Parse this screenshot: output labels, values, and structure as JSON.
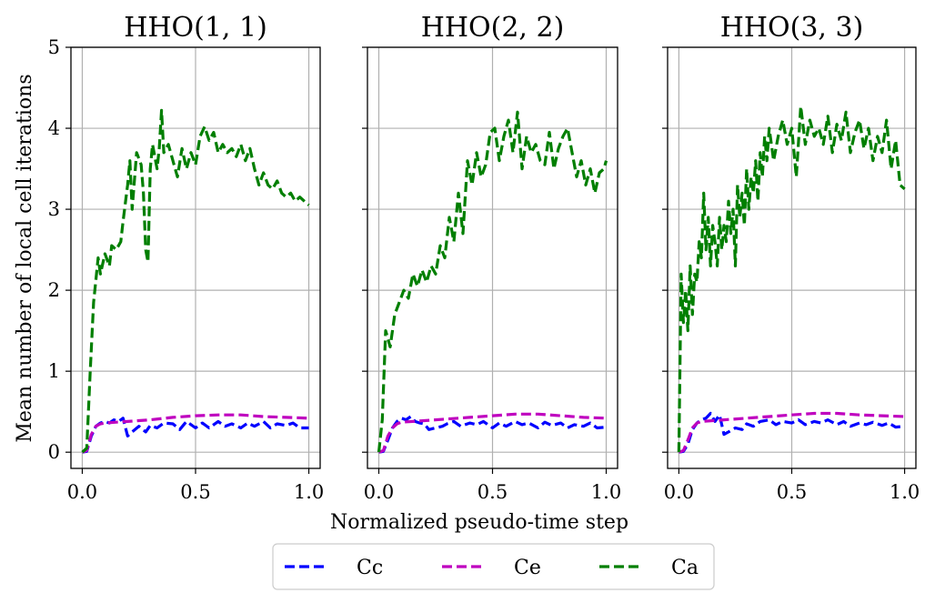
{
  "figure": {
    "xlabel": "Normalized pseudo-time step",
    "ylabel": "Mean number of local cell iterations"
  },
  "legend": {
    "placement": "bottom-center",
    "entries": [
      {
        "name": "Cc",
        "color": "#0000ff"
      },
      {
        "name": "Ce",
        "color": "#bf00bf"
      },
      {
        "name": "Ca",
        "color": "#007f00"
      }
    ]
  },
  "chart_data": [
    {
      "type": "line",
      "title": "HHO(1, 1)",
      "xlim": [
        -0.05,
        1.05
      ],
      "ylim": [
        -0.2,
        5
      ],
      "xticks": [
        "0.0",
        "0.5",
        "1.0"
      ],
      "yticks": [
        "0",
        "1",
        "2",
        "3",
        "4",
        "5"
      ],
      "grid": true,
      "series": [
        {
          "name": "Cc",
          "color": "#0000ff",
          "x": [
            0,
            0.02,
            0.04,
            0.06,
            0.08,
            0.1,
            0.12,
            0.14,
            0.16,
            0.18,
            0.2,
            0.22,
            0.25,
            0.28,
            0.3,
            0.33,
            0.36,
            0.4,
            0.43,
            0.46,
            0.5,
            0.53,
            0.56,
            0.6,
            0.63,
            0.66,
            0.7,
            0.73,
            0.76,
            0.8,
            0.83,
            0.86,
            0.9,
            0.93,
            0.96,
            1.0
          ],
          "y": [
            0,
            0.01,
            0.2,
            0.32,
            0.36,
            0.38,
            0.36,
            0.4,
            0.38,
            0.42,
            0.2,
            0.25,
            0.32,
            0.25,
            0.33,
            0.3,
            0.36,
            0.35,
            0.28,
            0.38,
            0.3,
            0.36,
            0.3,
            0.38,
            0.32,
            0.35,
            0.3,
            0.36,
            0.32,
            0.38,
            0.3,
            0.35,
            0.33,
            0.36,
            0.3,
            0.3
          ]
        },
        {
          "name": "Ce",
          "color": "#bf00bf",
          "x": [
            0,
            0.02,
            0.04,
            0.06,
            0.08,
            0.1,
            0.15,
            0.2,
            0.3,
            0.4,
            0.5,
            0.6,
            0.7,
            0.8,
            0.9,
            1.0
          ],
          "y": [
            0,
            0.02,
            0.22,
            0.32,
            0.35,
            0.36,
            0.37,
            0.38,
            0.4,
            0.43,
            0.45,
            0.46,
            0.46,
            0.44,
            0.43,
            0.42
          ]
        },
        {
          "name": "Ca",
          "color": "#007f00",
          "x": [
            0,
            0.02,
            0.035,
            0.05,
            0.07,
            0.08,
            0.1,
            0.12,
            0.13,
            0.15,
            0.17,
            0.18,
            0.2,
            0.21,
            0.22,
            0.24,
            0.26,
            0.27,
            0.28,
            0.29,
            0.3,
            0.31,
            0.33,
            0.34,
            0.35,
            0.36,
            0.38,
            0.4,
            0.42,
            0.44,
            0.46,
            0.48,
            0.5,
            0.52,
            0.54,
            0.56,
            0.58,
            0.6,
            0.62,
            0.64,
            0.66,
            0.68,
            0.7,
            0.72,
            0.74,
            0.76,
            0.78,
            0.8,
            0.82,
            0.84,
            0.86,
            0.88,
            0.9,
            0.92,
            0.94,
            0.96,
            0.98,
            1.0
          ],
          "y": [
            0,
            0.05,
            1.0,
            1.85,
            2.4,
            2.2,
            2.45,
            2.3,
            2.55,
            2.5,
            2.6,
            2.85,
            3.3,
            3.6,
            3.0,
            3.7,
            3.55,
            3.2,
            2.5,
            2.35,
            3.5,
            3.8,
            3.5,
            3.75,
            4.22,
            3.7,
            3.8,
            3.6,
            3.4,
            3.75,
            3.5,
            3.7,
            3.55,
            3.9,
            4.02,
            3.85,
            3.95,
            3.7,
            3.8,
            3.7,
            3.75,
            3.65,
            3.8,
            3.6,
            3.75,
            3.5,
            3.3,
            3.45,
            3.3,
            3.25,
            3.35,
            3.2,
            3.15,
            3.2,
            3.1,
            3.15,
            3.1,
            3.05
          ]
        }
      ]
    },
    {
      "type": "line",
      "title": "HHO(2, 2)",
      "xlim": [
        -0.05,
        1.05
      ],
      "ylim": [
        -0.2,
        5
      ],
      "xticks": [
        "0.0",
        "0.5",
        "1.0"
      ],
      "yticks": [
        "0",
        "1",
        "2",
        "3",
        "4",
        "5"
      ],
      "grid": true,
      "series": [
        {
          "name": "Cc",
          "color": "#0000ff",
          "x": [
            0,
            0.02,
            0.04,
            0.06,
            0.08,
            0.1,
            0.12,
            0.14,
            0.16,
            0.18,
            0.2,
            0.22,
            0.25,
            0.28,
            0.3,
            0.33,
            0.36,
            0.4,
            0.43,
            0.46,
            0.5,
            0.53,
            0.56,
            0.6,
            0.63,
            0.66,
            0.7,
            0.73,
            0.76,
            0.8,
            0.83,
            0.86,
            0.9,
            0.93,
            0.96,
            1.0
          ],
          "y": [
            0,
            0.01,
            0.15,
            0.3,
            0.38,
            0.42,
            0.4,
            0.44,
            0.38,
            0.36,
            0.35,
            0.28,
            0.3,
            0.32,
            0.35,
            0.38,
            0.32,
            0.36,
            0.34,
            0.38,
            0.3,
            0.36,
            0.32,
            0.38,
            0.34,
            0.36,
            0.3,
            0.37,
            0.33,
            0.36,
            0.3,
            0.34,
            0.32,
            0.36,
            0.3,
            0.31
          ]
        },
        {
          "name": "Ce",
          "color": "#bf00bf",
          "x": [
            0,
            0.02,
            0.04,
            0.06,
            0.08,
            0.1,
            0.15,
            0.2,
            0.3,
            0.4,
            0.5,
            0.6,
            0.7,
            0.8,
            0.9,
            1.0
          ],
          "y": [
            0,
            0.02,
            0.2,
            0.3,
            0.35,
            0.37,
            0.38,
            0.39,
            0.41,
            0.43,
            0.45,
            0.47,
            0.47,
            0.45,
            0.43,
            0.42
          ]
        },
        {
          "name": "Ca",
          "color": "#007f00",
          "x": [
            0,
            0.015,
            0.03,
            0.05,
            0.07,
            0.09,
            0.11,
            0.13,
            0.15,
            0.17,
            0.19,
            0.21,
            0.23,
            0.25,
            0.27,
            0.29,
            0.31,
            0.33,
            0.35,
            0.37,
            0.39,
            0.41,
            0.43,
            0.45,
            0.47,
            0.49,
            0.51,
            0.53,
            0.55,
            0.57,
            0.59,
            0.61,
            0.63,
            0.65,
            0.67,
            0.69,
            0.71,
            0.73,
            0.75,
            0.77,
            0.79,
            0.81,
            0.83,
            0.85,
            0.87,
            0.89,
            0.91,
            0.93,
            0.95,
            0.97,
            0.99,
            1.0
          ],
          "y": [
            0,
            0.4,
            1.5,
            1.3,
            1.7,
            1.85,
            2.0,
            1.9,
            2.2,
            2.05,
            2.25,
            2.1,
            2.3,
            2.2,
            2.55,
            2.4,
            2.9,
            2.6,
            3.2,
            2.7,
            3.6,
            3.3,
            3.7,
            3.4,
            3.55,
            3.95,
            4.0,
            3.6,
            3.9,
            4.1,
            3.7,
            4.2,
            3.5,
            3.9,
            3.7,
            3.8,
            3.6,
            3.55,
            3.95,
            3.5,
            3.75,
            3.9,
            4.0,
            3.7,
            3.4,
            3.6,
            3.3,
            3.5,
            3.2,
            3.45,
            3.5,
            3.6
          ]
        }
      ]
    },
    {
      "type": "line",
      "title": "HHO(3, 3)",
      "xlim": [
        -0.05,
        1.05
      ],
      "ylim": [
        -0.2,
        5
      ],
      "xticks": [
        "0.0",
        "0.5",
        "1.0"
      ],
      "yticks": [
        "0",
        "1",
        "2",
        "3",
        "4",
        "5"
      ],
      "grid": true,
      "series": [
        {
          "name": "Cc",
          "color": "#0000ff",
          "x": [
            0,
            0.02,
            0.04,
            0.06,
            0.08,
            0.1,
            0.12,
            0.14,
            0.16,
            0.18,
            0.2,
            0.22,
            0.25,
            0.28,
            0.3,
            0.33,
            0.36,
            0.4,
            0.43,
            0.46,
            0.5,
            0.53,
            0.56,
            0.6,
            0.63,
            0.66,
            0.7,
            0.73,
            0.76,
            0.8,
            0.83,
            0.86,
            0.9,
            0.93,
            0.96,
            1.0
          ],
          "y": [
            0,
            0.01,
            0.1,
            0.28,
            0.36,
            0.4,
            0.42,
            0.48,
            0.38,
            0.46,
            0.22,
            0.25,
            0.3,
            0.28,
            0.35,
            0.32,
            0.38,
            0.4,
            0.34,
            0.38,
            0.36,
            0.4,
            0.34,
            0.38,
            0.36,
            0.4,
            0.34,
            0.38,
            0.32,
            0.36,
            0.34,
            0.37,
            0.33,
            0.36,
            0.31,
            0.32
          ]
        },
        {
          "name": "Ce",
          "color": "#bf00bf",
          "x": [
            0,
            0.02,
            0.04,
            0.06,
            0.08,
            0.1,
            0.15,
            0.2,
            0.3,
            0.4,
            0.5,
            0.6,
            0.7,
            0.8,
            0.9,
            1.0
          ],
          "y": [
            0,
            0.02,
            0.15,
            0.3,
            0.36,
            0.38,
            0.39,
            0.4,
            0.42,
            0.44,
            0.46,
            0.48,
            0.48,
            0.46,
            0.45,
            0.44
          ]
        },
        {
          "name": "Ca",
          "color": "#007f00",
          "x": [
            0,
            0.01,
            0.02,
            0.03,
            0.04,
            0.05,
            0.06,
            0.07,
            0.08,
            0.09,
            0.1,
            0.11,
            0.12,
            0.13,
            0.14,
            0.15,
            0.16,
            0.17,
            0.18,
            0.19,
            0.2,
            0.21,
            0.22,
            0.23,
            0.24,
            0.25,
            0.26,
            0.27,
            0.28,
            0.29,
            0.3,
            0.31,
            0.32,
            0.33,
            0.34,
            0.35,
            0.36,
            0.37,
            0.38,
            0.39,
            0.4,
            0.42,
            0.44,
            0.46,
            0.48,
            0.5,
            0.52,
            0.54,
            0.56,
            0.58,
            0.6,
            0.62,
            0.64,
            0.66,
            0.68,
            0.7,
            0.72,
            0.74,
            0.76,
            0.78,
            0.8,
            0.82,
            0.84,
            0.86,
            0.88,
            0.9,
            0.92,
            0.94,
            0.96,
            0.98,
            1.0
          ],
          "y": [
            0,
            2.2,
            1.6,
            2.0,
            1.5,
            2.3,
            1.7,
            2.2,
            2.1,
            2.6,
            2.4,
            3.2,
            2.5,
            2.9,
            2.3,
            2.8,
            2.6,
            2.3,
            2.9,
            2.5,
            2.8,
            2.6,
            3.1,
            2.7,
            3.0,
            2.3,
            3.3,
            2.9,
            3.2,
            2.8,
            3.5,
            3.0,
            3.4,
            3.2,
            3.6,
            3.1,
            3.7,
            3.4,
            3.9,
            3.6,
            4.0,
            3.6,
            3.9,
            4.1,
            3.8,
            4.0,
            3.4,
            4.27,
            3.8,
            4.1,
            3.9,
            4.0,
            3.8,
            4.15,
            3.7,
            4.05,
            3.85,
            4.2,
            3.7,
            3.95,
            4.1,
            3.75,
            4.0,
            3.6,
            3.9,
            3.7,
            4.1,
            3.5,
            3.85,
            3.3,
            3.25
          ]
        }
      ]
    }
  ]
}
